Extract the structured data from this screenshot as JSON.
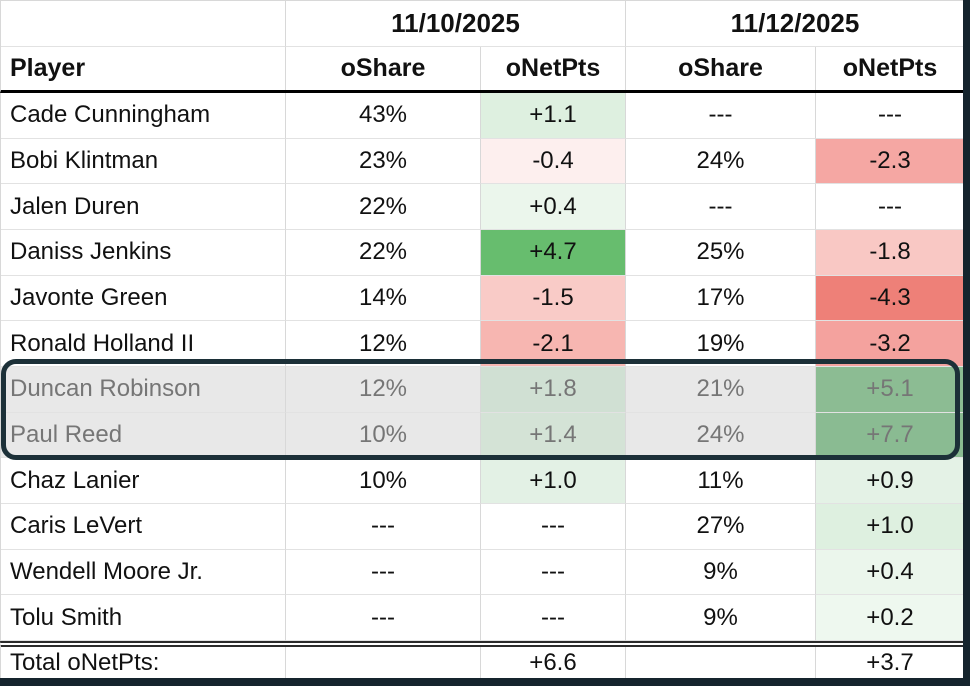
{
  "header": {
    "player": "Player",
    "groups": [
      {
        "date": "11/10/2025",
        "cols": [
          "oShare",
          "oNetPts"
        ]
      },
      {
        "date": "11/12/2025",
        "cols": [
          "oShare",
          "oNetPts"
        ]
      }
    ]
  },
  "rows": [
    {
      "player": "Cade Cunningham",
      "dim": false,
      "cells": [
        {
          "t": "43%",
          "bg": "#ffffff"
        },
        {
          "t": "+1.1",
          "bg": "#def0e0"
        },
        {
          "t": "---",
          "bg": "#ffffff"
        },
        {
          "t": "---",
          "bg": "#ffffff"
        }
      ]
    },
    {
      "player": "Bobi Klintman",
      "dim": false,
      "cells": [
        {
          "t": "23%",
          "bg": "#ffffff"
        },
        {
          "t": "-0.4",
          "bg": "#fdefee"
        },
        {
          "t": "24%",
          "bg": "#ffffff"
        },
        {
          "t": "-2.3",
          "bg": "#f5a7a3"
        }
      ]
    },
    {
      "player": "Jalen Duren",
      "dim": false,
      "cells": [
        {
          "t": "22%",
          "bg": "#ffffff"
        },
        {
          "t": "+0.4",
          "bg": "#ebf6ec"
        },
        {
          "t": "---",
          "bg": "#ffffff"
        },
        {
          "t": "---",
          "bg": "#ffffff"
        }
      ]
    },
    {
      "player": "Daniss Jenkins",
      "dim": false,
      "cells": [
        {
          "t": "22%",
          "bg": "#ffffff"
        },
        {
          "t": "+4.7",
          "bg": "#67bd6e"
        },
        {
          "t": "25%",
          "bg": "#ffffff"
        },
        {
          "t": "-1.8",
          "bg": "#f9c8c4"
        }
      ]
    },
    {
      "player": "Javonte Green",
      "dim": false,
      "cells": [
        {
          "t": "14%",
          "bg": "#ffffff"
        },
        {
          "t": "-1.5",
          "bg": "#f9cbc7"
        },
        {
          "t": "17%",
          "bg": "#ffffff"
        },
        {
          "t": "-4.3",
          "bg": "#ee8078"
        }
      ]
    },
    {
      "player": "Ronald Holland II",
      "dim": false,
      "cells": [
        {
          "t": "12%",
          "bg": "#ffffff"
        },
        {
          "t": "-2.1",
          "bg": "#f7b6b1"
        },
        {
          "t": "19%",
          "bg": "#ffffff"
        },
        {
          "t": "-3.2",
          "bg": "#f4a29e"
        }
      ]
    },
    {
      "player": "Duncan Robinson",
      "dim": true,
      "cells": [
        {
          "t": "12%",
          "bg": "#e8e8e8"
        },
        {
          "t": "+1.8",
          "bg": "#d0e0d3"
        },
        {
          "t": "21%",
          "bg": "#e8e8e8"
        },
        {
          "t": "+5.1",
          "bg": "#8cbc93"
        }
      ]
    },
    {
      "player": "Paul Reed",
      "dim": true,
      "cells": [
        {
          "t": "10%",
          "bg": "#e8e8e8"
        },
        {
          "t": "+1.4",
          "bg": "#d4e3d6"
        },
        {
          "t": "24%",
          "bg": "#e8e8e8"
        },
        {
          "t": "+7.7",
          "bg": "#8abb92"
        }
      ]
    },
    {
      "player": "Chaz Lanier",
      "dim": false,
      "cells": [
        {
          "t": "10%",
          "bg": "#ffffff"
        },
        {
          "t": "+1.0",
          "bg": "#e3f1e5"
        },
        {
          "t": "11%",
          "bg": "#ffffff"
        },
        {
          "t": "+0.9",
          "bg": "#e4f2e6"
        }
      ]
    },
    {
      "player": "Caris LeVert",
      "dim": false,
      "cells": [
        {
          "t": "---",
          "bg": "#ffffff"
        },
        {
          "t": "---",
          "bg": "#ffffff"
        },
        {
          "t": "27%",
          "bg": "#ffffff"
        },
        {
          "t": "+1.0",
          "bg": "#def0e0"
        }
      ]
    },
    {
      "player": "Wendell Moore Jr.",
      "dim": false,
      "cells": [
        {
          "t": "---",
          "bg": "#ffffff"
        },
        {
          "t": "---",
          "bg": "#ffffff"
        },
        {
          "t": "9%",
          "bg": "#ffffff"
        },
        {
          "t": "+0.4",
          "bg": "#ebf6ec"
        }
      ]
    },
    {
      "player": "Tolu Smith",
      "dim": false,
      "cells": [
        {
          "t": "---",
          "bg": "#ffffff"
        },
        {
          "t": "---",
          "bg": "#ffffff"
        },
        {
          "t": "9%",
          "bg": "#ffffff"
        },
        {
          "t": "+0.2",
          "bg": "#eef8ef"
        }
      ]
    }
  ],
  "total": {
    "label": "Total oNetPts:",
    "cells": [
      {
        "t": "",
        "bg": "#ffffff"
      },
      {
        "t": "+6.6",
        "bg": "#ffffff"
      },
      {
        "t": "",
        "bg": "#ffffff"
      },
      {
        "t": "+3.7",
        "bg": "#ffffff"
      }
    ]
  },
  "highlight": {
    "players": [
      "Duncan Robinson",
      "Paul Reed"
    ],
    "border_color": "#1c3038",
    "row_bg": "#e8e8e8",
    "text_color": "#767676"
  },
  "colors": {
    "grid_line": "#d8d8d8",
    "header_underline": "#000000",
    "frame_dark": "#15242d",
    "green_strong": "#67bd6e",
    "red_strong": "#ee8078"
  }
}
